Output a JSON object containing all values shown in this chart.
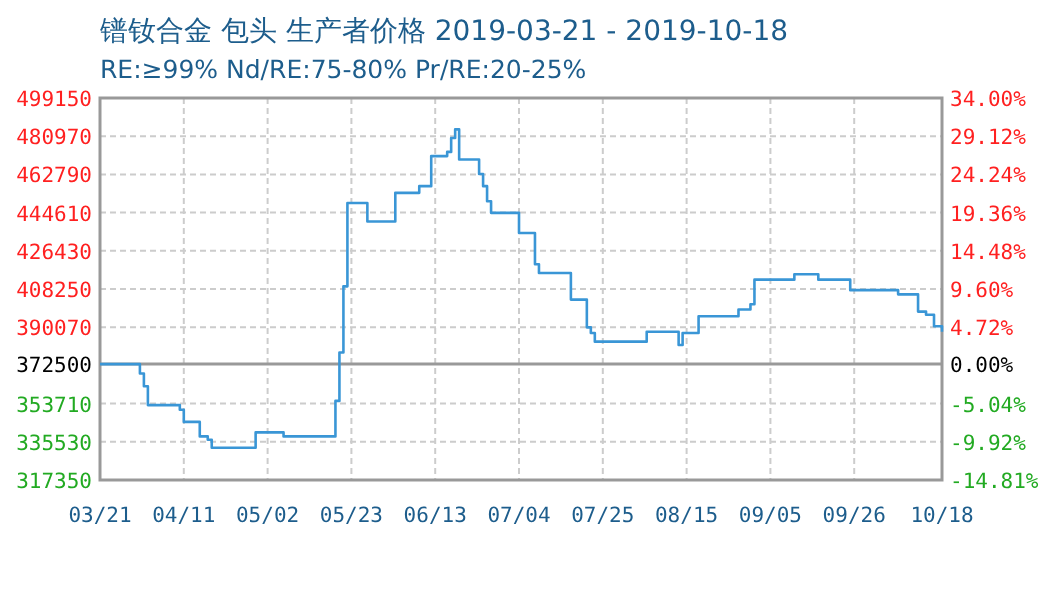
{
  "chart_data": {
    "type": "step",
    "title": "镨钕合金 包头 生产者价格 2019-03-21 - 2019-10-18",
    "subtitle": "RE:≥99% Nd/RE:75-80% Pr/RE:20-25%",
    "x": [
      "2019-03-21",
      "2019-03-30",
      "2019-03-31",
      "2019-04-01",
      "2019-04-02",
      "2019-04-09",
      "2019-04-10",
      "2019-04-11",
      "2019-04-14",
      "2019-04-15",
      "2019-04-17",
      "2019-04-18",
      "2019-04-27",
      "2019-04-29",
      "2019-05-05",
      "2019-05-06",
      "2019-05-18",
      "2019-05-19",
      "2019-05-20",
      "2019-05-21",
      "2019-05-22",
      "2019-05-26",
      "2019-05-27",
      "2019-06-02",
      "2019-06-03",
      "2019-06-08",
      "2019-06-09",
      "2019-06-11",
      "2019-06-12",
      "2019-06-15",
      "2019-06-16",
      "2019-06-17",
      "2019-06-18",
      "2019-06-19",
      "2019-06-23",
      "2019-06-24",
      "2019-06-25",
      "2019-06-26",
      "2019-06-27",
      "2019-07-03",
      "2019-07-04",
      "2019-07-07",
      "2019-07-08",
      "2019-07-09",
      "2019-07-16",
      "2019-07-17",
      "2019-07-20",
      "2019-07-21",
      "2019-07-22",
      "2019-07-23",
      "2019-08-04",
      "2019-08-05",
      "2019-08-12",
      "2019-08-13",
      "2019-08-14",
      "2019-08-17",
      "2019-08-18",
      "2019-08-27",
      "2019-08-28",
      "2019-08-31",
      "2019-09-01",
      "2019-09-10",
      "2019-09-11",
      "2019-09-16",
      "2019-09-17",
      "2019-09-24",
      "2019-09-25",
      "2019-10-06",
      "2019-10-07",
      "2019-10-11",
      "2019-10-12",
      "2019-10-14",
      "2019-10-16",
      "2019-10-18"
    ],
    "series": [
      {
        "color": "#3a96d6",
        "values": [
          372500,
          372500,
          368000,
          362000,
          353000,
          353000,
          350800,
          345000,
          345000,
          338100,
          336500,
          332700,
          332700,
          340000,
          340000,
          338100,
          338100,
          355000,
          378000,
          409500,
          449200,
          449200,
          440400,
          440400,
          454000,
          454000,
          457200,
          457200,
          471500,
          471500,
          473500,
          480100,
          484200,
          469900,
          469900,
          463000,
          457200,
          450000,
          444500,
          444500,
          434900,
          434900,
          420000,
          415900,
          415900,
          403200,
          403200,
          390000,
          387300,
          383200,
          383200,
          387900,
          387900,
          381600,
          387300,
          387300,
          395300,
          395300,
          398500,
          401000,
          412700,
          412700,
          415300,
          415300,
          412700,
          412700,
          407700,
          407700,
          405700,
          405700,
          397500,
          396000,
          390500,
          387900
        ]
      }
    ],
    "xlim": [
      "2019-03-21",
      "2019-10-18"
    ],
    "xticks": [
      {
        "value": "2019-03-21",
        "label": "03/21"
      },
      {
        "value": "2019-04-11",
        "label": "04/11"
      },
      {
        "value": "2019-05-02",
        "label": "05/02"
      },
      {
        "value": "2019-05-23",
        "label": "05/23"
      },
      {
        "value": "2019-06-13",
        "label": "06/13"
      },
      {
        "value": "2019-07-04",
        "label": "07/04"
      },
      {
        "value": "2019-07-25",
        "label": "07/25"
      },
      {
        "value": "2019-08-15",
        "label": "08/15"
      },
      {
        "value": "2019-09-05",
        "label": "09/05"
      },
      {
        "value": "2019-09-26",
        "label": "09/26"
      },
      {
        "value": "2019-10-18",
        "label": "10/18"
      }
    ],
    "ylim": [
      317350,
      499150
    ],
    "yticks": [
      317350,
      335530,
      353710,
      372500,
      390070,
      408250,
      426430,
      444610,
      462790,
      480970,
      499150
    ],
    "y2lim": [
      -14.81,
      34.0
    ],
    "y2ticks": [
      {
        "value": -14.81,
        "label": "-14.81%"
      },
      {
        "value": -9.92,
        "label": "-9.92%"
      },
      {
        "value": -5.04,
        "label": "-5.04%"
      },
      {
        "value": 0,
        "label": "0.00%"
      },
      {
        "value": 4.72,
        "label": "4.72%"
      },
      {
        "value": 9.6,
        "label": "9.60%"
      },
      {
        "value": 14.48,
        "label": "14.48%"
      },
      {
        "value": 19.36,
        "label": "19.36%"
      },
      {
        "value": 24.24,
        "label": "24.24%"
      },
      {
        "value": 29.12,
        "label": "29.12%"
      },
      {
        "value": 34.0,
        "label": "34.00%"
      }
    ],
    "ref_lines": [
      {
        "axis": "y",
        "value": 372500,
        "color": "#999999"
      }
    ],
    "grid": true
  }
}
